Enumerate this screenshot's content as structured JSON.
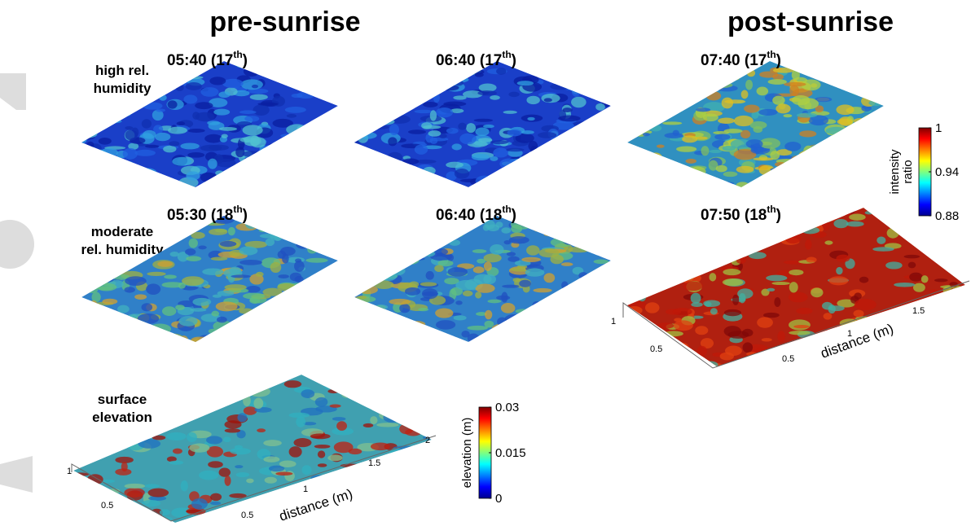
{
  "headers": {
    "left": "pre-sunrise",
    "right": "post-sunrise"
  },
  "rows": [
    "high rel.",
    "humidity",
    "moderate",
    "rel. humidity",
    "surface",
    "elevation"
  ],
  "panels": [
    {
      "pre": "05:40 (17",
      "sup": "th",
      "post": ")"
    },
    {
      "pre": "06:40 (17",
      "sup": "th",
      "post": ")"
    },
    {
      "pre": "07:40 (17",
      "sup": "th",
      "post": ")"
    },
    {
      "pre": "05:30 (18",
      "sup": "th",
      "post": ")"
    },
    {
      "pre": "06:40 (18",
      "sup": "th",
      "post": ")"
    },
    {
      "pre": "07:50 (18",
      "sup": "th",
      "post": ")"
    }
  ],
  "intensity_colorbar": {
    "label": [
      "intensity",
      "ratio"
    ],
    "lim": [
      0.88,
      1
    ],
    "ticks": [
      1,
      0.94,
      0.88
    ]
  },
  "elevation_colorbar": {
    "label": "elevation (m)",
    "lim": [
      0,
      0.03
    ],
    "ticks": [
      0.03,
      0.015,
      0
    ]
  },
  "axes_0750": {
    "ticks": [
      "1",
      "0.5",
      "0.5",
      "1",
      "1.5"
    ],
    "label": "distance (m)"
  },
  "axes_elevation": {
    "ticks": [
      "1",
      "0.5",
      "0.5",
      "1",
      "1.5",
      "2"
    ],
    "label": "distance (m)"
  }
}
